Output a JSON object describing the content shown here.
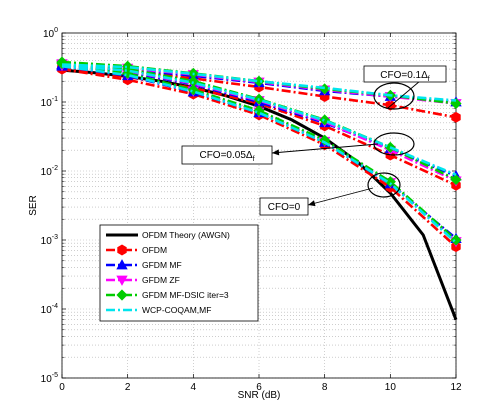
{
  "chart_data": {
    "type": "line",
    "xlabel": "SNR (dB)",
    "ylabel": "SER",
    "xlim": [
      0,
      12
    ],
    "ylim": [
      1e-05,
      1
    ],
    "yscale": "log",
    "grid": true,
    "legend_position": "bottom-left",
    "x_ticks": [
      "0",
      "2",
      "4",
      "6",
      "8",
      "10",
      "12"
    ],
    "y_ticks": [
      {
        "base": "10",
        "exp": "-5"
      },
      {
        "base": "10",
        "exp": "-4"
      },
      {
        "base": "10",
        "exp": "-3"
      },
      {
        "base": "10",
        "exp": "-2"
      },
      {
        "base": "10",
        "exp": "-1"
      },
      {
        "base": "10",
        "exp": "0"
      }
    ],
    "x": [
      0,
      2,
      4,
      6,
      8,
      10,
      12
    ],
    "theory": {
      "name": "OFDM Theory (AWGN)",
      "color": "#000000",
      "x": [
        0,
        1,
        2,
        3,
        4,
        5,
        6,
        7,
        8,
        9,
        10,
        11,
        12
      ],
      "y": [
        0.29,
        0.265,
        0.235,
        0.2,
        0.162,
        0.123,
        0.087,
        0.055,
        0.03,
        0.0136,
        0.0048,
        0.00118,
        7e-05
      ]
    },
    "series": [
      {
        "name": "OFDM",
        "color": "#ff0000",
        "marker": "hexagon",
        "groups": [
          {
            "cfo": "0",
            "y": [
              0.3,
              0.21,
              0.13,
              0.065,
              0.024,
              0.0058,
              0.0008
            ]
          },
          {
            "cfo": "0.05",
            "y": [
              0.31,
              0.23,
              0.16,
              0.095,
              0.045,
              0.017,
              0.0062
            ]
          },
          {
            "cfo": "0.1",
            "y": [
              0.32,
              0.28,
              0.22,
              0.165,
              0.12,
              0.09,
              0.06
            ]
          }
        ]
      },
      {
        "name": "GFDM MF",
        "color": "#0000ff",
        "marker": "triangle-up",
        "groups": [
          {
            "cfo": "0",
            "y": [
              0.33,
              0.24,
              0.14,
              0.07,
              0.026,
              0.0065,
              0.00105
            ]
          },
          {
            "cfo": "0.05",
            "y": [
              0.34,
              0.27,
              0.18,
              0.1,
              0.05,
              0.021,
              0.0085
            ]
          },
          {
            "cfo": "0.1",
            "y": [
              0.35,
              0.3,
              0.24,
              0.19,
              0.145,
              0.12,
              0.1
            ]
          }
        ]
      },
      {
        "name": "GFDM ZF",
        "color": "#ff00ff",
        "marker": "triangle-down",
        "groups": [
          {
            "cfo": "0",
            "y": [
              0.34,
              0.25,
              0.145,
              0.072,
              0.027,
              0.0068,
              0.00095
            ]
          },
          {
            "cfo": "0.05",
            "y": [
              0.35,
              0.28,
              0.185,
              0.105,
              0.052,
              0.02,
              0.0072
            ]
          },
          {
            "cfo": "0.1",
            "y": [
              0.36,
              0.31,
              0.25,
              0.195,
              0.15,
              0.12,
              0.095
            ]
          }
        ]
      },
      {
        "name": "GFDM MF-DSIC iter=3",
        "color": "#00cc00",
        "marker": "diamond",
        "groups": [
          {
            "cfo": "0",
            "y": [
              0.36,
              0.26,
              0.15,
              0.075,
              0.028,
              0.007,
              0.001
            ]
          },
          {
            "cfo": "0.05",
            "y": [
              0.37,
              0.3,
              0.2,
              0.11,
              0.055,
              0.022,
              0.0075
            ]
          },
          {
            "cfo": "0.1",
            "y": [
              0.38,
              0.33,
              0.26,
              0.2,
              0.155,
              0.125,
              0.095
            ]
          }
        ]
      },
      {
        "name": "WCP-COQAM,MF",
        "color": "#00e5ee",
        "marker": "none",
        "groups": [
          {
            "cfo": "0",
            "y": [
              0.33,
              0.245,
              0.142,
              0.07,
              0.026,
              0.0066,
              0.00092
            ]
          },
          {
            "cfo": "0.05",
            "y": [
              0.34,
              0.285,
              0.19,
              0.108,
              0.054,
              0.022,
              0.0088
            ]
          },
          {
            "cfo": "0.1",
            "y": [
              0.35,
              0.32,
              0.255,
              0.2,
              0.16,
              0.125,
              0.105
            ]
          }
        ]
      }
    ],
    "annotations": [
      {
        "label": "CFO=0.1",
        "sub": "f",
        "delta": true
      },
      {
        "label": "CFO=0.05",
        "sub": "f",
        "delta": true
      },
      {
        "label": "CFO=0",
        "sub": "",
        "delta": false
      }
    ]
  }
}
